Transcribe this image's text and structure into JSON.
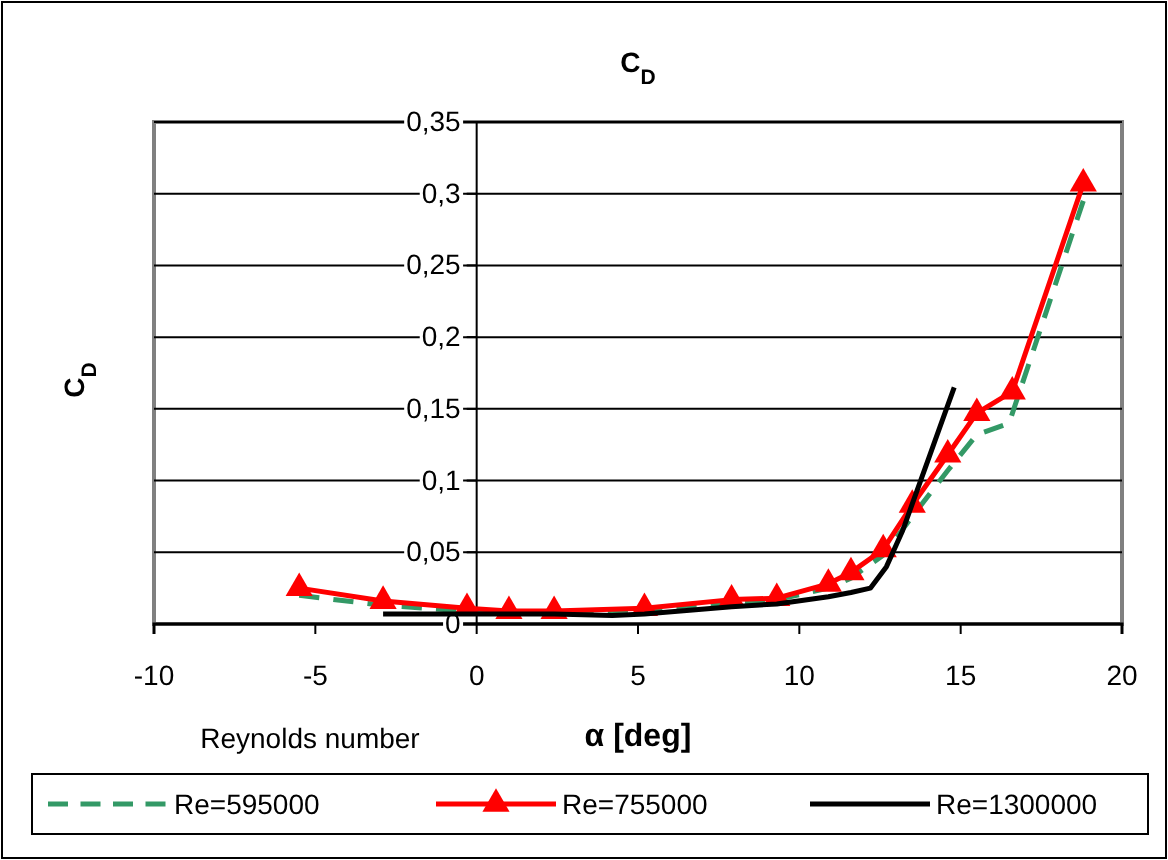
{
  "chart_data": {
    "type": "line",
    "title": "C$_{D}$",
    "ylabel": "C$_{D}$",
    "xlabel": "α [deg]",
    "legend_title": "Reynolds number",
    "xlim": [
      -10,
      20
    ],
    "xticks": [
      {
        "value": -10,
        "label": "-10"
      },
      {
        "value": -5,
        "label": "-5"
      },
      0,
      5,
      10,
      15,
      20
    ],
    "ylim": [
      0,
      0.35
    ],
    "yticks": [
      {
        "value": 0,
        "label": "0"
      },
      {
        "value": 0.05,
        "label": "0,05"
      },
      {
        "value": 0.1,
        "label": "0,1"
      },
      {
        "value": 0.15,
        "label": "0,15"
      },
      {
        "value": 0.2,
        "label": "0,2"
      },
      {
        "value": 0.25,
        "label": "0,25"
      },
      {
        "value": 0.3,
        "label": "0,3"
      },
      {
        "value": 0.35,
        "label": "0,35"
      }
    ],
    "grid": "y",
    "legend": "bottom",
    "series": [
      {
        "name": "Re=595000",
        "color": "#339966",
        "line_style": "dashed",
        "marker": "none",
        "x": [
          -5.5,
          -2.9,
          -0.3,
          1,
          2.4,
          5.2,
          7.9,
          9.3,
          10.9,
          11.6,
          12.6,
          13.5,
          14.6,
          15.5,
          16.5,
          18.8
        ],
        "values": [
          0.02,
          0.013,
          0.009,
          0.008,
          0.008,
          0.01,
          0.015,
          0.017,
          0.025,
          0.032,
          0.048,
          0.075,
          0.107,
          0.132,
          0.14,
          0.295
        ]
      },
      {
        "name": "Re=755000",
        "color": "#ff0000",
        "line_style": "solid",
        "marker": "triangle",
        "x": [
          -5.5,
          -2.9,
          -0.3,
          1,
          2.4,
          5.2,
          7.9,
          9.3,
          10.9,
          11.6,
          12.6,
          13.5,
          14.6,
          15.5,
          16.6,
          18.8
        ],
        "values": [
          0.025,
          0.016,
          0.011,
          0.009,
          0.009,
          0.011,
          0.017,
          0.018,
          0.028,
          0.036,
          0.052,
          0.083,
          0.118,
          0.147,
          0.162,
          0.307
        ]
      },
      {
        "name": "Re=1300000",
        "color": "#000000",
        "line_style": "solid",
        "marker": "none",
        "x": [
          -2.9,
          0,
          2.4,
          4.2,
          5.2,
          7.9,
          9.3,
          10.9,
          11.6,
          12.2,
          12.7,
          13.2,
          13.6,
          14,
          14.4,
          14.8
        ],
        "values": [
          0.007,
          0.007,
          0.007,
          0.006,
          0.007,
          0.012,
          0.014,
          0.019,
          0.022,
          0.025,
          0.04,
          0.065,
          0.09,
          0.115,
          0.14,
          0.165
        ]
      }
    ]
  }
}
